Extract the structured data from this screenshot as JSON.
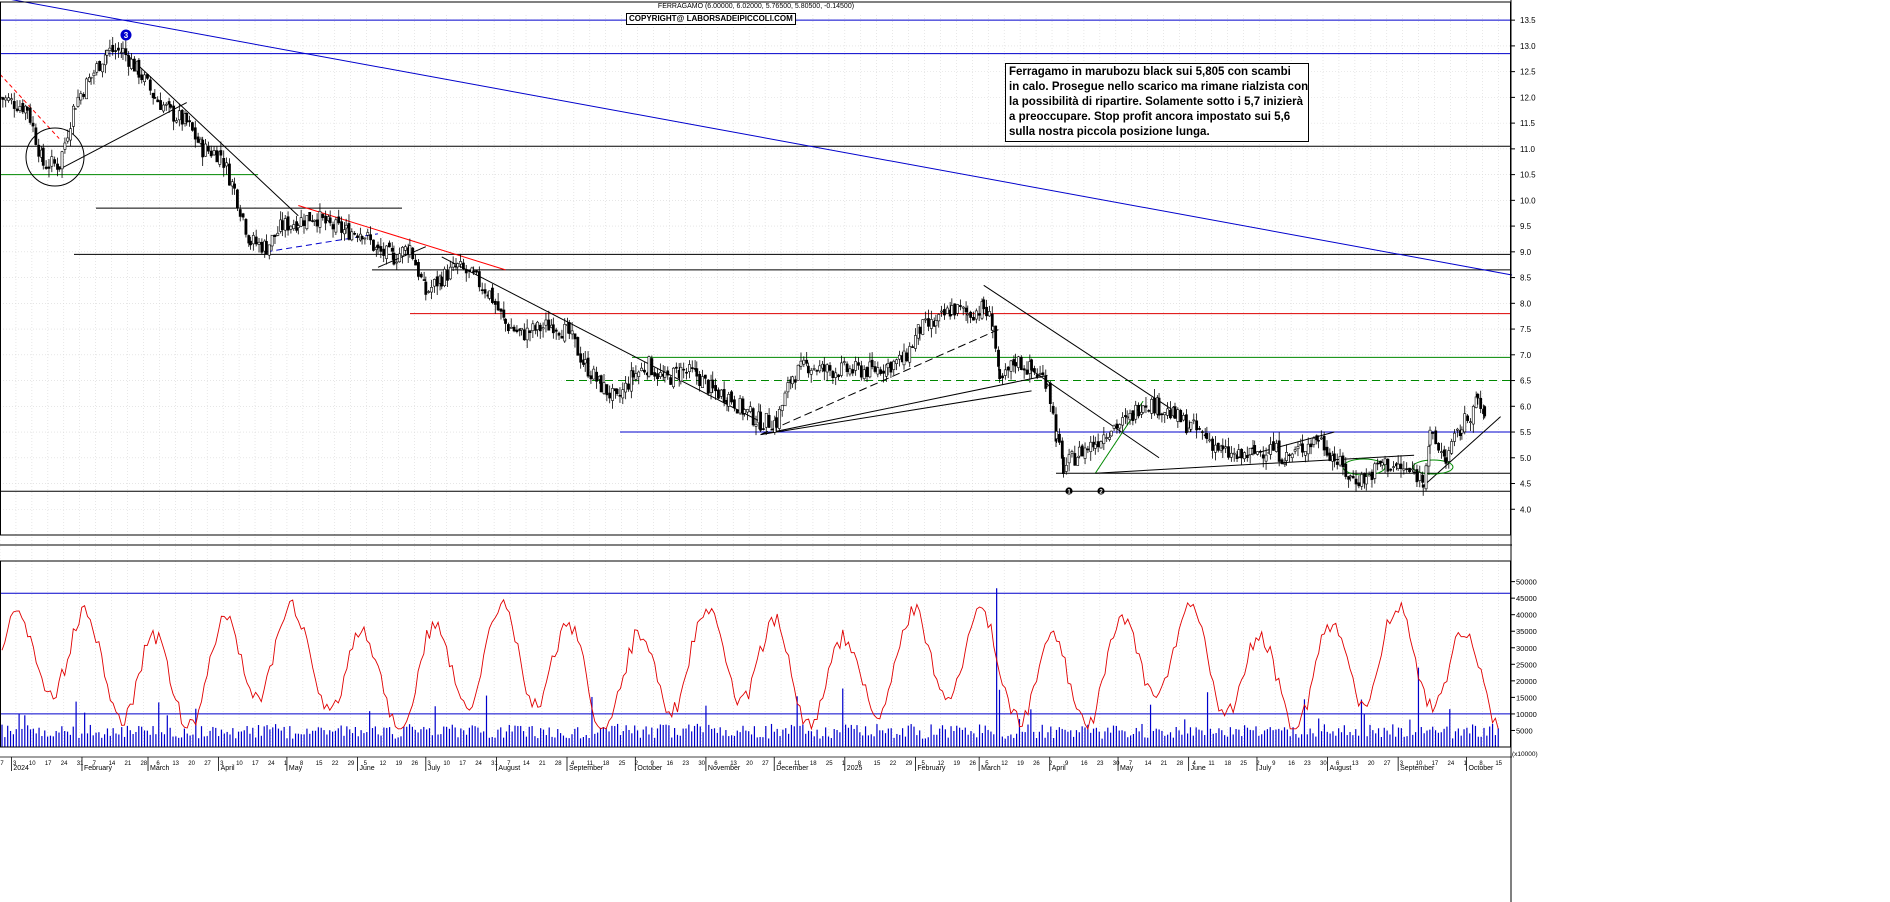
{
  "header": {
    "title": "FERRAGAMO (6.00000, 6.02000, 5.76500, 5.80500, -0.14500)",
    "copyright": "COPYRIGHT@ LABORSADEIPICCOLI.COM"
  },
  "annotation": {
    "lines": [
      "Ferragamo in marubozu black sui 5,805 con scambi",
      "in calo. Prosegue nello scarico ma rimane rialzista con",
      "la possibilità di ripartire. Solamente sotto i 5,7 inizierà",
      "a preoccupare. Stop profit ancora impostato sui 5,6",
      "sulla nostra piccola posizione lunga."
    ]
  },
  "colors": {
    "candle": "#000000",
    "volume": "#0000cc",
    "oscillator": "#e00000",
    "blue_level": "#0000cc",
    "green_level": "#008800",
    "red_level": "#dd0000",
    "grid": "#d8d8d8"
  },
  "chart_data": [
    {
      "type": "candlestick",
      "ylim": [
        3.5,
        13.6
      ],
      "y_ticks": [
        "13.5",
        "13.0",
        "12.5",
        "12.0",
        "11.5",
        "11.0",
        "10.5",
        "10.0",
        "9.5",
        "9.0",
        "8.5",
        "8.0",
        "7.5",
        "7.0",
        "6.5",
        "6.0",
        "5.5",
        "5.0",
        "4.5",
        "4.0"
      ],
      "last": {
        "open": 6.0,
        "high": 6.02,
        "low": 5.765,
        "close": 5.805,
        "change": -0.145
      },
      "price_path": [
        [
          "2023-12-27",
          12.0
        ],
        [
          "2024-01-08",
          11.8
        ],
        [
          "2024-01-15",
          10.7
        ],
        [
          "2024-01-22",
          10.7
        ],
        [
          "2024-01-29",
          11.9
        ],
        [
          "2024-02-05",
          12.4
        ],
        [
          "2024-02-12",
          12.9
        ],
        [
          "2024-02-19",
          12.9
        ],
        [
          "2024-02-26",
          12.5
        ],
        [
          "2024-03-04",
          12.0
        ],
        [
          "2024-03-11",
          11.7
        ],
        [
          "2024-03-18",
          11.5
        ],
        [
          "2024-03-25",
          11.0
        ],
        [
          "2024-04-02",
          10.9
        ],
        [
          "2024-04-08",
          10.2
        ],
        [
          "2024-04-15",
          9.2
        ],
        [
          "2024-04-22",
          9.1
        ],
        [
          "2024-04-29",
          9.5
        ],
        [
          "2024-05-06",
          9.6
        ],
        [
          "2024-05-13",
          9.7
        ],
        [
          "2024-05-20",
          9.5
        ],
        [
          "2024-05-27",
          9.4
        ],
        [
          "2024-06-03",
          9.4
        ],
        [
          "2024-06-10",
          9.0
        ],
        [
          "2024-06-17",
          8.9
        ],
        [
          "2024-06-24",
          9.1
        ],
        [
          "2024-07-01",
          8.2
        ],
        [
          "2024-07-08",
          8.5
        ],
        [
          "2024-07-15",
          8.7
        ],
        [
          "2024-07-22",
          8.5
        ],
        [
          "2024-07-29",
          8.2
        ],
        [
          "2024-08-05",
          7.6
        ],
        [
          "2024-08-12",
          7.4
        ],
        [
          "2024-08-19",
          7.5
        ],
        [
          "2024-08-26",
          7.6
        ],
        [
          "2024-09-02",
          7.4
        ],
        [
          "2024-09-09",
          6.8
        ],
        [
          "2024-09-16",
          6.4
        ],
        [
          "2024-09-23",
          6.1
        ],
        [
          "2024-09-30",
          6.6
        ],
        [
          "2024-10-07",
          6.8
        ],
        [
          "2024-10-14",
          6.5
        ],
        [
          "2024-10-21",
          6.7
        ],
        [
          "2024-10-28",
          6.6
        ],
        [
          "2024-11-04",
          6.3
        ],
        [
          "2024-11-11",
          6.2
        ],
        [
          "2024-11-18",
          5.9
        ],
        [
          "2024-11-25",
          5.7
        ],
        [
          "2024-12-02",
          5.7
        ],
        [
          "2024-12-09",
          6.6
        ],
        [
          "2024-12-16",
          6.8
        ],
        [
          "2024-12-23",
          6.7
        ],
        [
          "2025-01-02",
          6.7
        ],
        [
          "2025-01-13",
          6.7
        ],
        [
          "2025-01-20",
          6.8
        ],
        [
          "2025-01-27",
          6.9
        ],
        [
          "2025-02-03",
          7.5
        ],
        [
          "2025-02-10",
          7.6
        ],
        [
          "2025-02-17",
          7.9
        ],
        [
          "2025-02-24",
          7.8
        ],
        [
          "2025-03-03",
          7.9
        ],
        [
          "2025-03-07",
          7.6
        ],
        [
          "2025-03-10",
          6.4
        ],
        [
          "2025-03-17",
          6.9
        ],
        [
          "2025-03-24",
          6.7
        ],
        [
          "2025-03-31",
          6.5
        ],
        [
          "2025-04-04",
          5.4
        ],
        [
          "2025-04-07",
          4.8
        ],
        [
          "2025-04-14",
          5.1
        ],
        [
          "2025-04-21",
          5.3
        ],
        [
          "2025-04-28",
          5.6
        ],
        [
          "2025-05-05",
          5.7
        ],
        [
          "2025-05-12",
          6.1
        ],
        [
          "2025-05-19",
          6.0
        ],
        [
          "2025-05-26",
          5.8
        ],
        [
          "2025-06-02",
          5.6
        ],
        [
          "2025-06-09",
          5.4
        ],
        [
          "2025-06-16",
          5.1
        ],
        [
          "2025-06-23",
          5.0
        ],
        [
          "2025-06-30",
          5.1
        ],
        [
          "2025-07-07",
          5.2
        ],
        [
          "2025-07-14",
          5.0
        ],
        [
          "2025-07-21",
          5.2
        ],
        [
          "2025-07-28",
          5.4
        ],
        [
          "2025-08-04",
          5.0
        ],
        [
          "2025-08-11",
          4.6
        ],
        [
          "2025-08-18",
          4.6
        ],
        [
          "2025-08-25",
          4.9
        ],
        [
          "2025-09-01",
          4.8
        ],
        [
          "2025-09-08",
          4.7
        ],
        [
          "2025-09-12",
          4.6
        ],
        [
          "2025-09-15",
          5.4
        ],
        [
          "2025-09-22",
          5.0
        ],
        [
          "2025-09-29",
          5.6
        ],
        [
          "2025-10-06",
          6.1
        ],
        [
          "2025-10-09",
          5.805
        ]
      ],
      "levels": [
        {
          "value": 13.5,
          "color": "blue"
        },
        {
          "value": 12.85,
          "color": "blue"
        },
        {
          "value": 11.05,
          "color": "black"
        },
        {
          "value": 10.5,
          "color": "green"
        },
        {
          "value": 9.85,
          "color": "black"
        },
        {
          "value": 8.95,
          "color": "black"
        },
        {
          "value": 8.65,
          "color": "black"
        },
        {
          "value": 7.8,
          "color": "red"
        },
        {
          "value": 6.95,
          "color": "green"
        },
        {
          "value": 6.5,
          "color": "green",
          "dashed": true
        },
        {
          "value": 5.5,
          "color": "blue"
        },
        {
          "value": 4.7,
          "color": "black"
        },
        {
          "value": 4.35,
          "color": "black"
        }
      ],
      "markers": [
        "3",
        "1",
        "2"
      ]
    },
    {
      "type": "bar+line",
      "ylim": [
        0,
        52000
      ],
      "y_ticks": [
        "50000",
        "45000",
        "40000",
        "35000",
        "30000",
        "25000",
        "20000",
        "15000",
        "10000",
        "5000"
      ],
      "unit": "(x10000)",
      "levels": [
        46500,
        10000
      ],
      "note": "blue bars are daily volume, red line is the oscillator"
    }
  ],
  "x_axis": {
    "years": [
      "2024",
      "2025"
    ],
    "months": [
      "February",
      "March",
      "April",
      "May",
      "June",
      "July",
      "August",
      "September",
      "October",
      "November",
      "December",
      "February",
      "March",
      "April",
      "May",
      "June",
      "July",
      "August",
      "September",
      "October"
    ]
  }
}
